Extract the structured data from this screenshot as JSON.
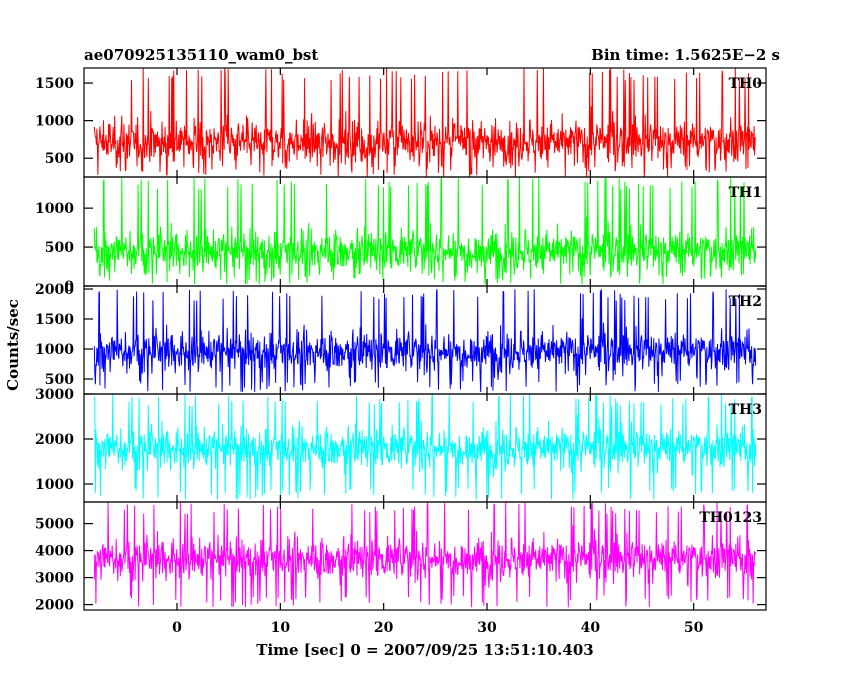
{
  "header": {
    "title_left": "ae070925135110_wam0_bst",
    "title_right": "Bin time: 1.5625E−2 s"
  },
  "chart_data": {
    "type": "line",
    "title": "ae070925135110_wam0_bst",
    "subtitle": "Bin time: 1.5625E−2 s",
    "xlabel": "Time [sec] 0 = 2007/09/25 13:51:10.403",
    "ylabel": "Counts/sec",
    "xlim": [
      -9,
      57
    ],
    "x_ticks": [
      0,
      10,
      20,
      30,
      40,
      50
    ],
    "x_tick_labels": [
      "0",
      "10",
      "20",
      "30",
      "40",
      "50"
    ],
    "x_range_of_data": [
      -8,
      56
    ],
    "bin_time_sec": 0.015625,
    "grid": false,
    "legend": "panel labels top-right",
    "series": [
      {
        "name": "TH0",
        "color": "#ff0000",
        "ylim": [
          250,
          1700
        ],
        "y_ticks": [
          500,
          1000,
          1500
        ],
        "y_tick_labels": [
          "500",
          "1000",
          "1500"
        ],
        "approx_mean": 720,
        "approx_min": 230,
        "approx_max": 1700
      },
      {
        "name": "TH1",
        "color": "#00ff00",
        "ylim": [
          0,
          1400
        ],
        "y_ticks": [
          0,
          500,
          1000
        ],
        "y_tick_labels": [
          "0",
          "500",
          "1000"
        ],
        "approx_mean": 450,
        "approx_min": 20,
        "approx_max": 1400
      },
      {
        "name": "TH2",
        "color": "#0000ff",
        "ylim": [
          250,
          2050
        ],
        "y_ticks": [
          500,
          1000,
          1500,
          2000
        ],
        "y_tick_labels": [
          "500",
          "1000",
          "1500",
          "2000"
        ],
        "approx_mean": 960,
        "approx_min": 280,
        "approx_max": 2000
      },
      {
        "name": "TH3",
        "color": "#00ffff",
        "ylim": [
          600,
          3000
        ],
        "y_ticks": [
          1000,
          2000,
          3000
        ],
        "y_tick_labels": [
          "1000",
          "2000",
          "3000"
        ],
        "approx_mean": 1800,
        "approx_min": 650,
        "approx_max": 3000
      },
      {
        "name": "TH0123",
        "color": "#ff00ff",
        "ylim": [
          1800,
          5800
        ],
        "y_ticks": [
          2000,
          3000,
          4000,
          5000
        ],
        "y_tick_labels": [
          "2000",
          "3000",
          "4000",
          "5000"
        ],
        "approx_mean": 3700,
        "approx_min": 1900,
        "approx_max": 5800
      }
    ]
  }
}
